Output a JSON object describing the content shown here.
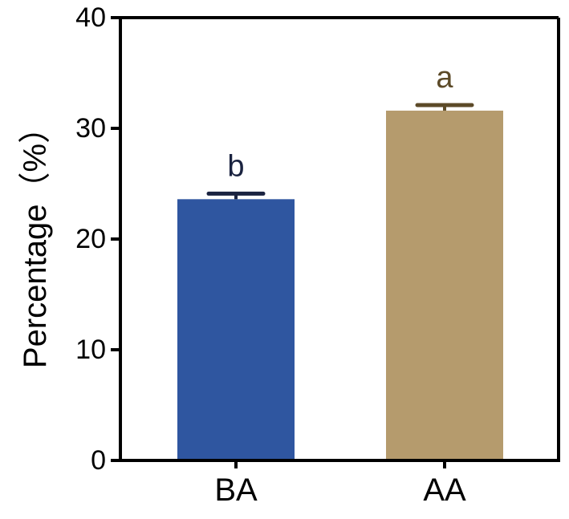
{
  "chart_data": {
    "type": "bar",
    "categories": [
      "BA",
      "AA"
    ],
    "series": [
      {
        "values": [
          23.6,
          31.6
        ],
        "errors": [
          0.5,
          0.5
        ],
        "colors": [
          "#2f56a0",
          "#b59b6d"
        ],
        "error_colors": [
          "#1a2340",
          "#5c4a28"
        ],
        "significance": [
          "b",
          "a"
        ]
      }
    ],
    "xlabel": "",
    "ylabel": "Percentage（%）",
    "ylim": [
      0,
      40
    ],
    "yticks": [
      "0",
      "10",
      "20",
      "30",
      "40"
    ],
    "grid": false,
    "legend": "none"
  }
}
